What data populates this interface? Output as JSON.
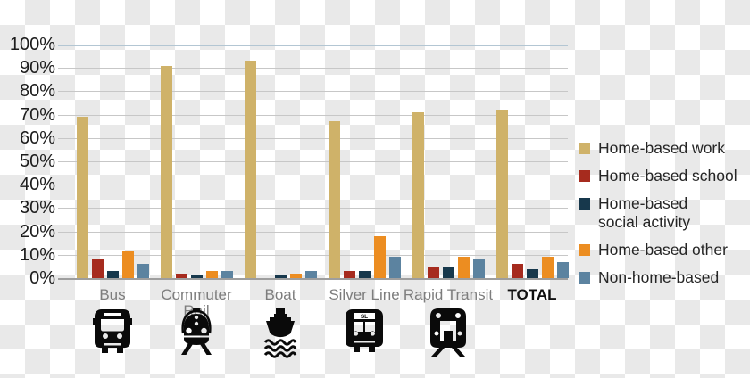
{
  "colors": {
    "checker_light": "#ffffff",
    "checker_dark": "#e9e9e9",
    "gridline": "#c7c7c7",
    "gridline_top": "#b3c6d3",
    "axis_line": "#9e9e9e",
    "tick_label": "#1c1c1c",
    "category_label": "#7d7d7d",
    "total_label": "#111111",
    "legend_text": "#262626",
    "icon": "#0a0a0a"
  },
  "chart_data": {
    "type": "bar",
    "title": "",
    "xlabel": "",
    "ylabel": "",
    "categories": [
      "Bus",
      "Commuter Rail",
      "Boat",
      "Silver Line",
      "Rapid Transit",
      "TOTAL"
    ],
    "series": [
      {
        "name": "Home-based work",
        "color": "#CFB269",
        "values": [
          69,
          91,
          93,
          67,
          71,
          72
        ]
      },
      {
        "name": "Home-based school",
        "color": "#A62B1E",
        "values": [
          8,
          2,
          0,
          3,
          5,
          6
        ]
      },
      {
        "name": "Home-based social activity",
        "name_lines": [
          "Home-based",
          "social activity"
        ],
        "color": "#17384C",
        "values": [
          3,
          1,
          1,
          3,
          5,
          4
        ]
      },
      {
        "name": "Home-based other",
        "color": "#EC8D21",
        "values": [
          12,
          3,
          2,
          18,
          9,
          9
        ]
      },
      {
        "name": "Non-home-based",
        "color": "#5C83A0",
        "values": [
          6,
          3,
          3,
          9,
          8,
          7
        ]
      }
    ],
    "ylim": [
      0,
      100
    ],
    "ytick_step": 10,
    "ytick_labels": [
      "0%",
      "10%",
      "20%",
      "30%",
      "40%",
      "50%",
      "60%",
      "70%",
      "80%",
      "90%",
      "100%"
    ],
    "grid": true,
    "legend_position": "right",
    "category_icons": [
      "bus-icon",
      "commuter-rail-icon",
      "boat-icon",
      "silver-line-icon",
      "rapid-transit-icon",
      null
    ],
    "silver_line_sign_text": "SL"
  }
}
